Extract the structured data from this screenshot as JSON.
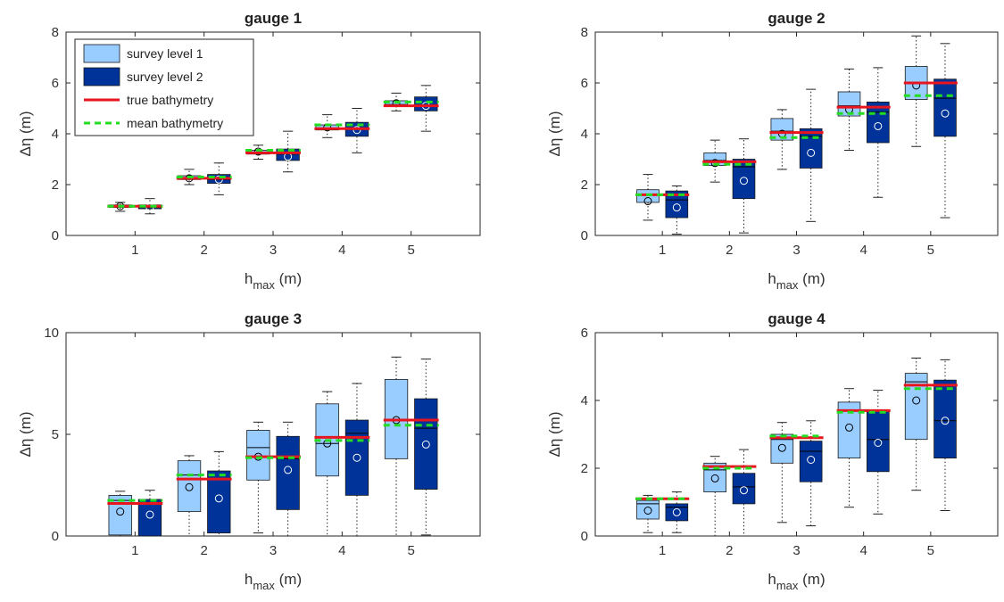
{
  "chart_data": [
    {
      "type": "boxplot",
      "title": "gauge 1",
      "xlabel": "h",
      "xlabel_sub": "max",
      "xlabel_unit": "(m)",
      "ylabel": "Δη (m)",
      "ylim": [
        0,
        8
      ],
      "yticks": [
        "0",
        "2",
        "4",
        "6",
        "8"
      ],
      "categories": [
        "1",
        "2",
        "3",
        "4",
        "5"
      ],
      "true_bathymetry": [
        1.15,
        2.25,
        3.25,
        4.2,
        5.1
      ],
      "mean_bathymetry": [
        1.15,
        2.3,
        3.35,
        4.35,
        5.25
      ],
      "series": [
        {
          "name": "survey level 1",
          "q1": [
            1.1,
            2.2,
            3.2,
            4.15,
            5.1
          ],
          "median": [
            1.15,
            2.25,
            3.25,
            4.2,
            5.15
          ],
          "q3": [
            1.2,
            2.35,
            3.35,
            4.35,
            5.3
          ],
          "whisker_low": [
            0.95,
            2.0,
            3.0,
            3.85,
            4.9
          ],
          "whisker_high": [
            1.3,
            2.6,
            3.55,
            4.75,
            5.6
          ],
          "mean": [
            1.15,
            2.25,
            3.3,
            4.25,
            5.2
          ]
        },
        {
          "name": "survey level 2",
          "q1": [
            1.05,
            2.05,
            2.95,
            3.9,
            4.9
          ],
          "median": [
            1.1,
            2.2,
            3.2,
            4.2,
            5.1
          ],
          "q3": [
            1.2,
            2.4,
            3.4,
            4.45,
            5.45
          ],
          "whisker_low": [
            0.85,
            1.6,
            2.5,
            3.25,
            4.1
          ],
          "whisker_high": [
            1.45,
            2.85,
            4.1,
            5.0,
            5.9
          ],
          "mean": [
            1.1,
            2.2,
            3.1,
            4.15,
            5.1
          ]
        }
      ]
    },
    {
      "type": "boxplot",
      "title": "gauge 2",
      "xlabel": "h",
      "xlabel_sub": "max",
      "xlabel_unit": "(m)",
      "ylabel": "Δη (m)",
      "ylim": [
        0,
        8
      ],
      "yticks": [
        "0",
        "2",
        "4",
        "6",
        "8"
      ],
      "categories": [
        "1",
        "2",
        "3",
        "4",
        "5"
      ],
      "true_bathymetry": [
        1.6,
        2.9,
        4.05,
        5.05,
        6.0
      ],
      "mean_bathymetry": [
        1.6,
        2.8,
        3.85,
        4.8,
        5.5
      ],
      "series": [
        {
          "name": "survey level 1",
          "q1": [
            1.3,
            2.75,
            3.75,
            4.7,
            5.35
          ],
          "median": [
            1.6,
            2.95,
            4.1,
            5.1,
            6.0
          ],
          "q3": [
            1.8,
            3.25,
            4.6,
            5.65,
            6.65
          ],
          "whisker_low": [
            0.6,
            2.1,
            2.6,
            3.35,
            3.5
          ],
          "whisker_high": [
            2.4,
            3.75,
            4.95,
            6.55,
            7.85
          ],
          "mean": [
            1.35,
            2.85,
            4.0,
            4.95,
            5.9
          ]
        },
        {
          "name": "survey level 2",
          "q1": [
            0.7,
            1.45,
            2.65,
            3.65,
            3.9
          ],
          "median": [
            1.4,
            2.7,
            3.9,
            4.85,
            5.4
          ],
          "q3": [
            1.75,
            3.0,
            4.2,
            5.25,
            6.15
          ],
          "whisker_low": [
            0.05,
            0.1,
            0.55,
            1.5,
            0.7
          ],
          "whisker_high": [
            1.95,
            3.8,
            5.75,
            6.6,
            7.55
          ],
          "mean": [
            1.1,
            2.15,
            3.25,
            4.3,
            4.8
          ]
        }
      ]
    },
    {
      "type": "boxplot",
      "title": "gauge 3",
      "xlabel": "h",
      "xlabel_sub": "max",
      "xlabel_unit": "(m)",
      "ylabel": "Δη (m)",
      "ylim": [
        0,
        10
      ],
      "yticks": [
        "0",
        "5",
        "10"
      ],
      "categories": [
        "1",
        "2",
        "3",
        "4",
        "5"
      ],
      "true_bathymetry": [
        1.6,
        2.8,
        3.9,
        4.85,
        5.7
      ],
      "mean_bathymetry": [
        1.75,
        3.0,
        3.85,
        4.7,
        5.45
      ],
      "series": [
        {
          "name": "survey level 1",
          "q1": [
            0.05,
            1.2,
            2.75,
            2.95,
            3.8
          ],
          "median": [
            1.75,
            3.0,
            4.35,
            4.55,
            5.7
          ],
          "q3": [
            2.0,
            3.7,
            5.2,
            6.5,
            7.7
          ],
          "whisker_low": [
            0.0,
            0.0,
            0.15,
            0.0,
            0.0
          ],
          "whisker_high": [
            2.2,
            3.95,
            5.6,
            7.1,
            8.8
          ],
          "mean": [
            1.2,
            2.4,
            3.9,
            4.55,
            5.7
          ]
        },
        {
          "name": "survey level 2",
          "q1": [
            0.0,
            0.15,
            1.3,
            2.0,
            2.3
          ],
          "median": [
            1.65,
            2.8,
            3.8,
            5.05,
            5.3
          ],
          "q3": [
            1.8,
            3.2,
            4.9,
            5.7,
            6.75
          ],
          "whisker_low": [
            0.0,
            0.0,
            0.0,
            0.0,
            0.05
          ],
          "whisker_high": [
            2.25,
            4.15,
            5.6,
            7.5,
            8.7
          ],
          "mean": [
            1.05,
            1.85,
            3.25,
            3.85,
            4.5
          ]
        }
      ]
    },
    {
      "type": "boxplot",
      "title": "gauge 4",
      "xlabel": "h",
      "xlabel_sub": "max",
      "xlabel_unit": "(m)",
      "ylabel": "Δη (m)",
      "ylim": [
        0,
        6
      ],
      "yticks": [
        "0",
        "2",
        "4",
        "6"
      ],
      "categories": [
        "1",
        "2",
        "3",
        "4",
        "5"
      ],
      "true_bathymetry": [
        1.1,
        2.05,
        2.9,
        3.7,
        4.45
      ],
      "mean_bathymetry": [
        1.1,
        2.0,
        2.95,
        3.65,
        4.35
      ],
      "series": [
        {
          "name": "survey level 1",
          "q1": [
            0.5,
            1.3,
            2.15,
            2.3,
            2.85
          ],
          "median": [
            0.95,
            1.95,
            2.85,
            3.7,
            4.55
          ],
          "q3": [
            1.05,
            2.15,
            3.0,
            3.95,
            4.8
          ],
          "whisker_low": [
            0.1,
            0.0,
            0.4,
            0.85,
            1.35
          ],
          "whisker_high": [
            1.2,
            2.35,
            3.35,
            4.35,
            5.25
          ],
          "mean": [
            0.75,
            1.7,
            2.6,
            3.2,
            4.0
          ]
        },
        {
          "name": "survey level 2",
          "q1": [
            0.45,
            0.95,
            1.6,
            1.9,
            2.3
          ],
          "median": [
            0.85,
            1.45,
            2.5,
            2.85,
            3.4
          ],
          "q3": [
            0.95,
            1.85,
            2.8,
            3.7,
            4.6
          ],
          "whisker_low": [
            0.1,
            0.0,
            0.3,
            0.65,
            0.75
          ],
          "whisker_high": [
            1.3,
            2.55,
            3.4,
            4.3,
            5.2
          ],
          "mean": [
            0.7,
            1.35,
            2.25,
            2.75,
            3.4
          ]
        }
      ]
    }
  ],
  "legend": {
    "location": "top-left of gauge 1",
    "entries": [
      {
        "label": "survey level 1",
        "style": "box",
        "color": "#99CCFF"
      },
      {
        "label": "survey level 2",
        "style": "box",
        "color": "#003399"
      },
      {
        "label": "true bathymetry",
        "style": "solid-line",
        "color": "#E8141E"
      },
      {
        "label": "mean bathymetry",
        "style": "dashed-line",
        "color": "#22DD22"
      }
    ]
  },
  "colors": {
    "survey1_fill": "#99CCFF",
    "survey2_fill": "#003399",
    "true_line": "#E8141E",
    "mean_line": "#22DD22",
    "axis": "#262626",
    "whisker": "#222222"
  }
}
